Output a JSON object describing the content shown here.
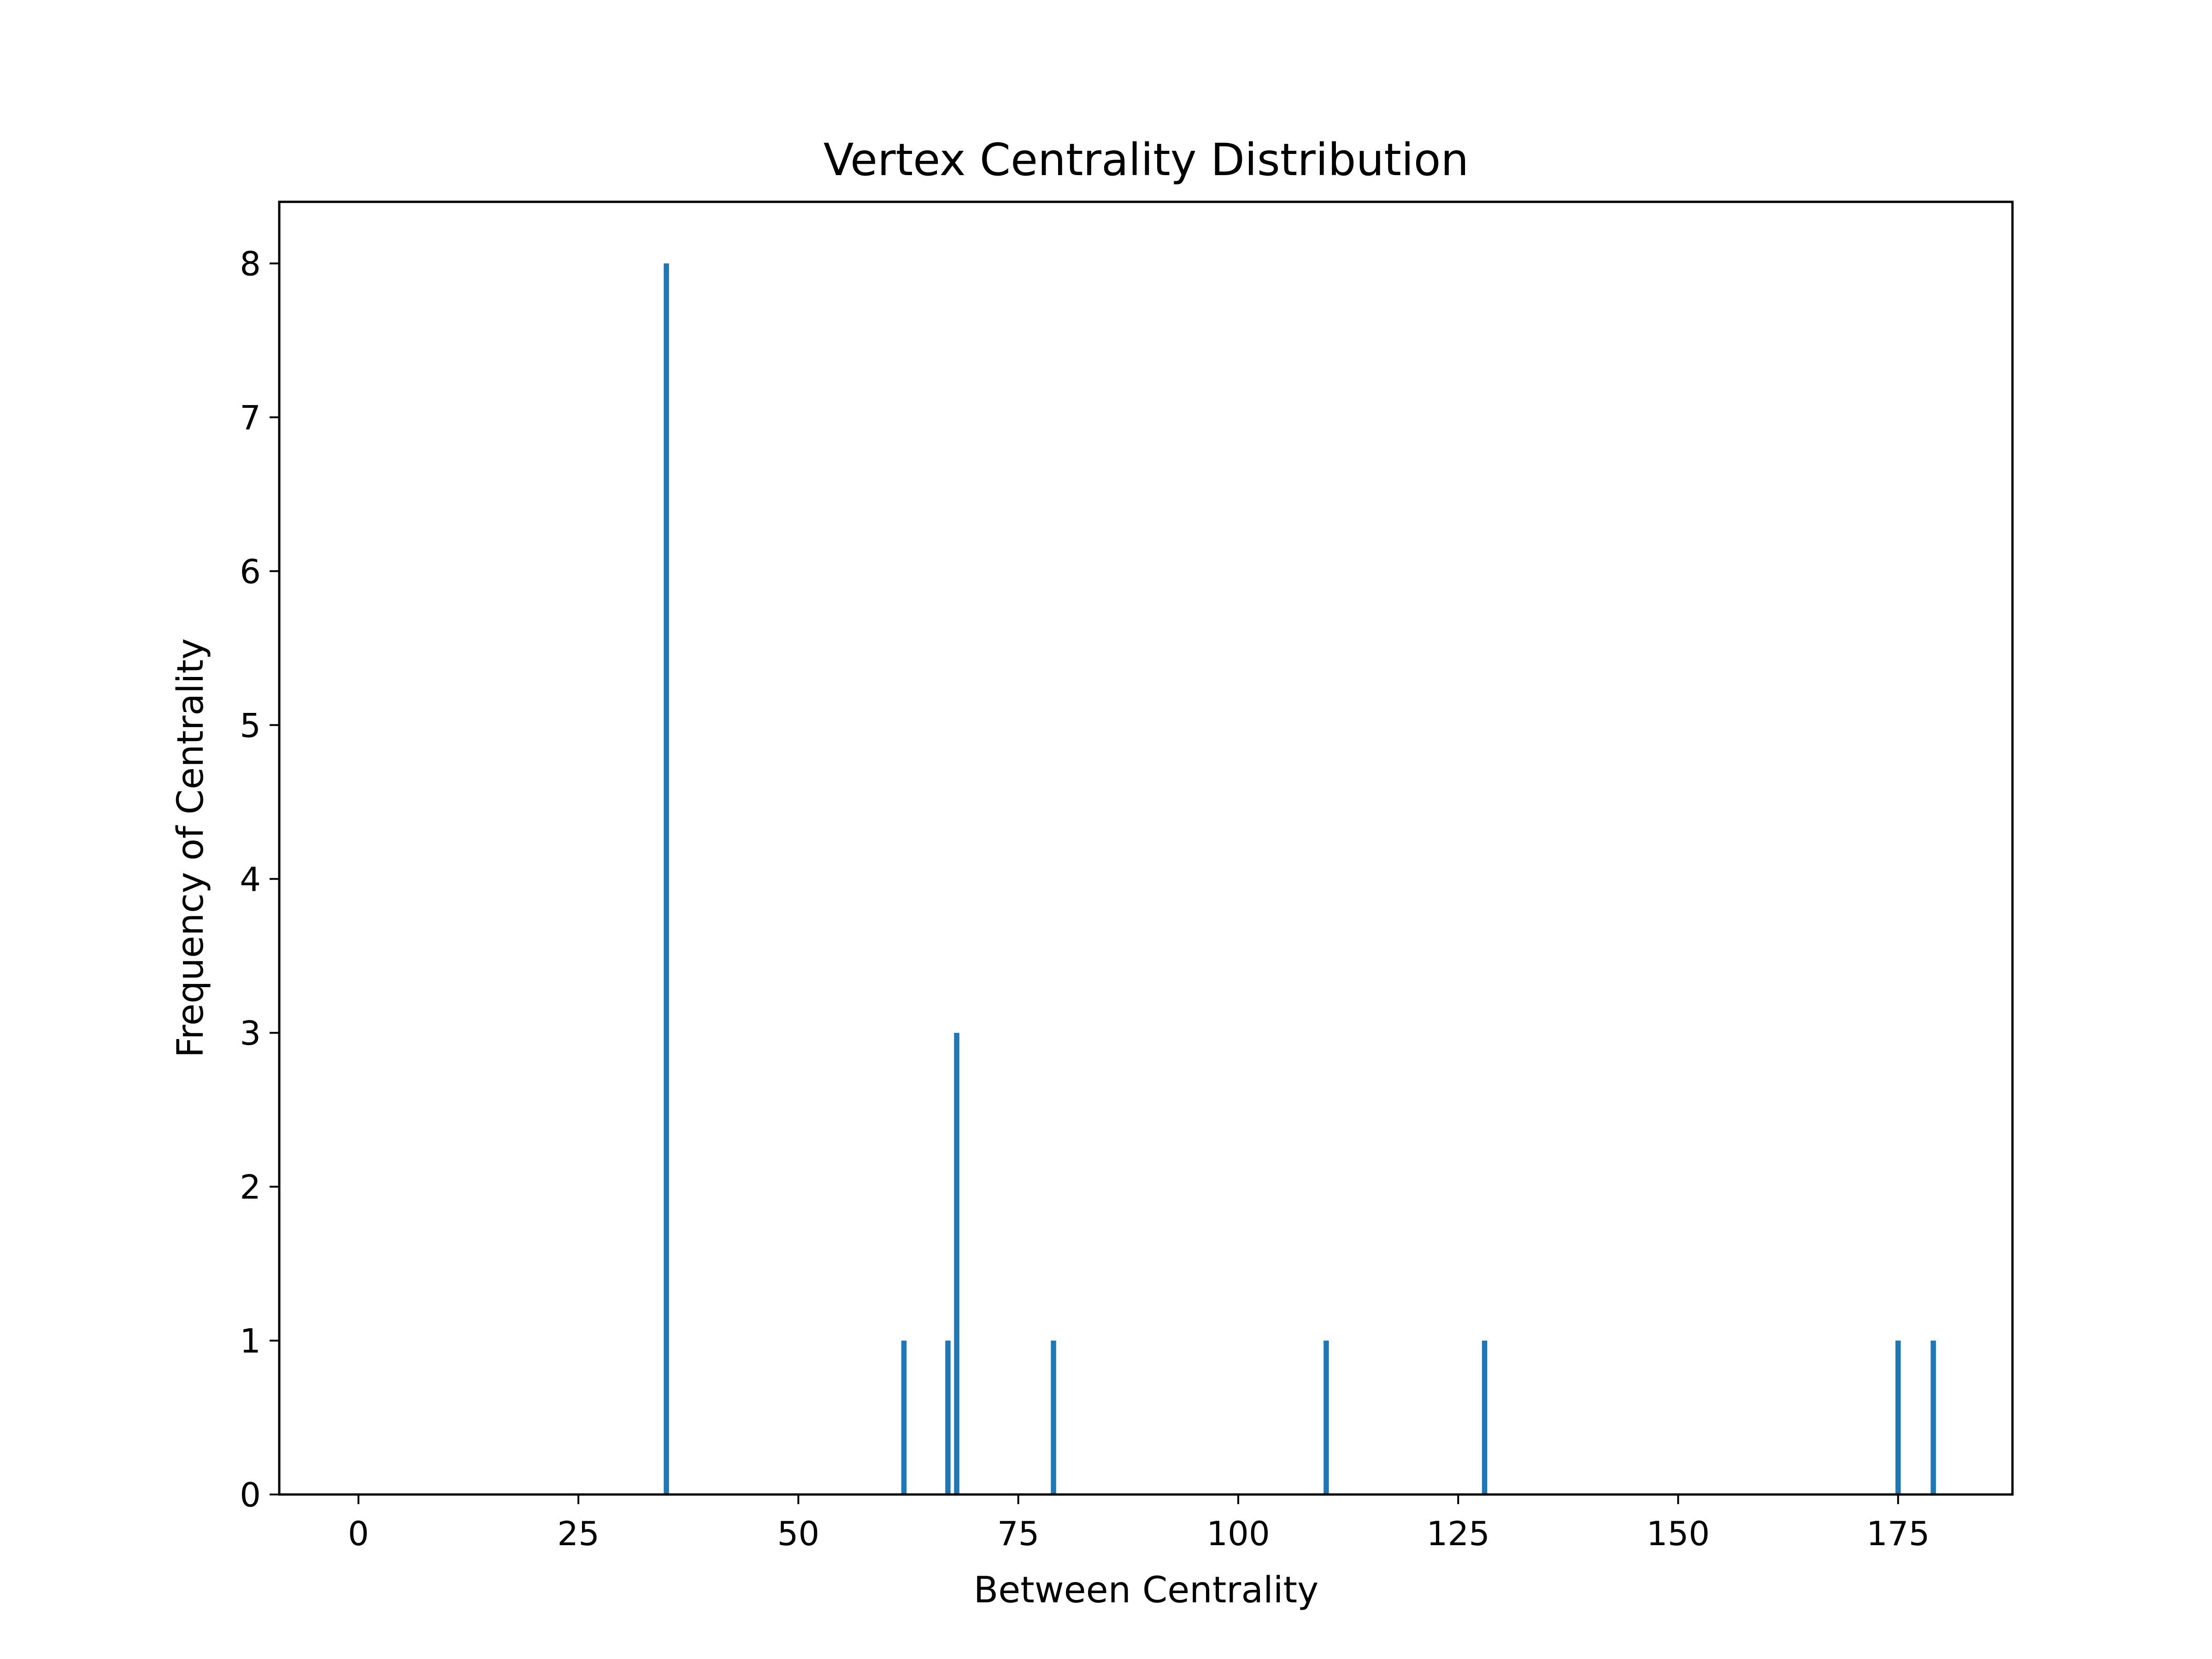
{
  "chart_data": {
    "type": "bar",
    "title": "Vertex Centrality Distribution",
    "xlabel": "Between Centrality",
    "ylabel": "Frequency of Centrality",
    "xlim": [
      -9,
      188
    ],
    "ylim": [
      0,
      8.4
    ],
    "x": [
      35,
      62,
      67,
      68,
      79,
      110,
      128,
      175,
      179
    ],
    "values": [
      8,
      1,
      1,
      3,
      1,
      1,
      1,
      1,
      1
    ],
    "bar_width": 0.6,
    "xticks": [
      0,
      25,
      50,
      75,
      100,
      125,
      150,
      175
    ],
    "xtick_labels": [
      "0",
      "25",
      "50",
      "75",
      "100",
      "125",
      "150",
      "175"
    ],
    "yticks": [
      0,
      1,
      2,
      3,
      4,
      5,
      6,
      7,
      8
    ],
    "ytick_labels": [
      "0",
      "1",
      "2",
      "3",
      "4",
      "5",
      "6",
      "7",
      "8"
    ],
    "grid": false,
    "legend": "none",
    "bar_color": "#1f77b4"
  }
}
